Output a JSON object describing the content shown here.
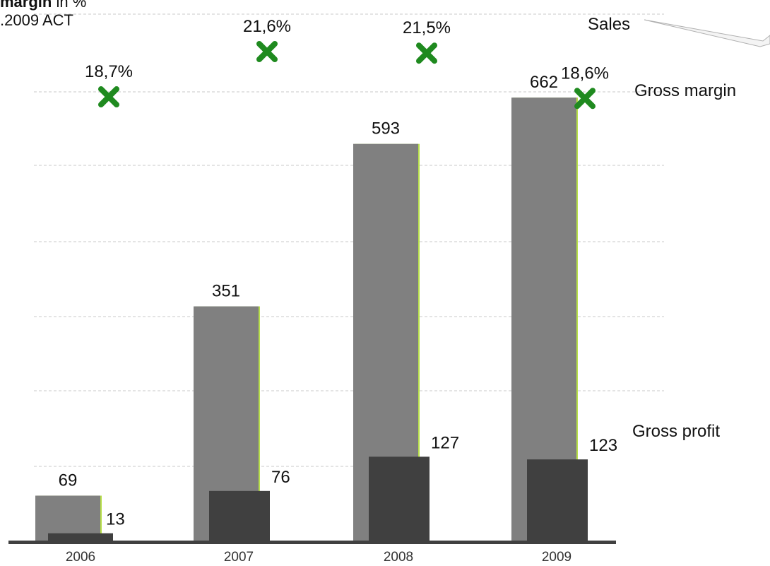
{
  "header": {
    "line1_bold": "margin",
    "line1_rest": " in %",
    "line2": ".2009 ACT"
  },
  "colors": {
    "sales": "#808080",
    "gross_profit": "#404040",
    "gross_margin_marker": "#1f8a1f",
    "bar_highlight": "#b8e04a",
    "gridline": "#c8c8c8",
    "axis": "#404040"
  },
  "chart_data": {
    "type": "bar",
    "categories": [
      "2006",
      "2007",
      "2008",
      "2009"
    ],
    "series": [
      {
        "name": "Sales",
        "kind": "bar",
        "values": [
          69,
          351,
          593,
          662
        ]
      },
      {
        "name": "Gross profit",
        "kind": "bar",
        "values": [
          13,
          76,
          127,
          123
        ]
      },
      {
        "name": "Gross margin",
        "kind": "marker",
        "marker": "x",
        "values": [
          18.7,
          21.6,
          21.5,
          18.6
        ],
        "labels": [
          "18,7%",
          "21,6%",
          "21,5%",
          "18,6%"
        ]
      }
    ],
    "ylim": [
      0,
      700
    ],
    "margin_ylim": [
      0,
      24
    ],
    "grid": true,
    "legend_labels": [
      "Sales",
      "Gross margin",
      "Gross profit"
    ]
  }
}
